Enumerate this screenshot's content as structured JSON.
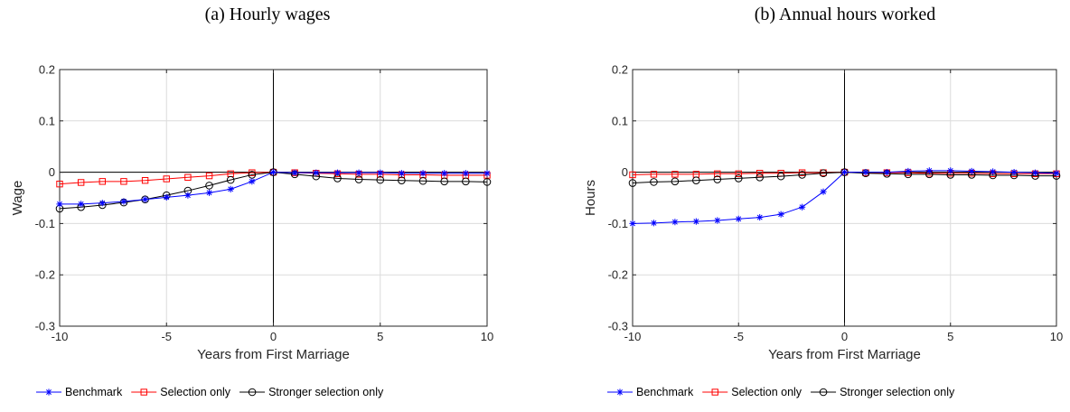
{
  "chart_data": [
    {
      "type": "line",
      "title": "(a) Hourly wages",
      "xlabel": "Years from First Marriage",
      "ylabel": "Wage",
      "xlim": [
        -10,
        10
      ],
      "ylim": [
        -0.3,
        0.2
      ],
      "xticks": [
        "-10",
        "-5",
        "0",
        "5",
        "10"
      ],
      "yticks": [
        "-0.3",
        "-0.2",
        "-0.1",
        "0",
        "0.1",
        "0.2"
      ],
      "grid": true,
      "reference_lines": {
        "horizontal_y": 0,
        "vertical_x": 0
      },
      "legend_position": "bottom",
      "x": [
        -10,
        -9,
        -8,
        -7,
        -6,
        -5,
        -4,
        -3,
        -2,
        -1,
        0,
        1,
        2,
        3,
        4,
        5,
        6,
        7,
        8,
        9,
        10
      ],
      "series": [
        {
          "name": "Benchmark",
          "color": "#0000ff",
          "marker": "star",
          "values": [
            -0.062,
            -0.062,
            -0.06,
            -0.057,
            -0.053,
            -0.049,
            -0.045,
            -0.04,
            -0.033,
            -0.018,
            0.0,
            -0.001,
            -0.001,
            -0.001,
            -0.001,
            -0.001,
            -0.002,
            -0.002,
            -0.002,
            -0.002,
            -0.002
          ]
        },
        {
          "name": "Selection only",
          "color": "#ff0000",
          "marker": "square",
          "values": [
            -0.023,
            -0.02,
            -0.018,
            -0.018,
            -0.016,
            -0.013,
            -0.01,
            -0.007,
            -0.003,
            -0.001,
            0.0,
            -0.001,
            -0.002,
            -0.003,
            -0.004,
            -0.004,
            -0.005,
            -0.005,
            -0.006,
            -0.006,
            -0.006
          ]
        },
        {
          "name": "Stronger selection only",
          "color": "#000000",
          "marker": "circle",
          "values": [
            -0.071,
            -0.068,
            -0.064,
            -0.059,
            -0.053,
            -0.045,
            -0.036,
            -0.026,
            -0.015,
            -0.005,
            0.0,
            -0.004,
            -0.008,
            -0.012,
            -0.014,
            -0.015,
            -0.016,
            -0.017,
            -0.018,
            -0.018,
            -0.019
          ]
        }
      ]
    },
    {
      "type": "line",
      "title": "(b) Annual hours worked",
      "xlabel": "Years from First Marriage",
      "ylabel": "Hours",
      "xlim": [
        -10,
        10
      ],
      "ylim": [
        -0.3,
        0.2
      ],
      "xticks": [
        "-10",
        "-5",
        "0",
        "5",
        "10"
      ],
      "yticks": [
        "-0.3",
        "-0.2",
        "-0.1",
        "0",
        "0.1",
        "0.2"
      ],
      "grid": true,
      "reference_lines": {
        "horizontal_y": 0,
        "vertical_x": 0
      },
      "legend_position": "bottom",
      "x": [
        -10,
        -9,
        -8,
        -7,
        -6,
        -5,
        -4,
        -3,
        -2,
        -1,
        0,
        1,
        2,
        3,
        4,
        5,
        6,
        7,
        8,
        9,
        10
      ],
      "series": [
        {
          "name": "Benchmark",
          "color": "#0000ff",
          "marker": "star",
          "values": [
            -0.1,
            -0.099,
            -0.097,
            -0.096,
            -0.094,
            -0.091,
            -0.088,
            -0.082,
            -0.068,
            -0.038,
            0.0,
            0.0,
            0.0,
            0.002,
            0.003,
            0.003,
            0.002,
            0.001,
            0.0,
            -0.001,
            -0.002
          ]
        },
        {
          "name": "Selection only",
          "color": "#ff0000",
          "marker": "square",
          "values": [
            -0.005,
            -0.004,
            -0.004,
            -0.004,
            -0.003,
            -0.003,
            -0.002,
            -0.002,
            -0.001,
            -0.001,
            0.0,
            -0.001,
            -0.001,
            -0.001,
            -0.002,
            -0.002,
            -0.002,
            -0.003,
            -0.003,
            -0.003,
            -0.003
          ]
        },
        {
          "name": "Stronger selection only",
          "color": "#000000",
          "marker": "circle",
          "values": [
            -0.021,
            -0.019,
            -0.018,
            -0.016,
            -0.014,
            -0.012,
            -0.01,
            -0.008,
            -0.005,
            -0.002,
            0.0,
            -0.002,
            -0.003,
            -0.004,
            -0.004,
            -0.005,
            -0.005,
            -0.006,
            -0.006,
            -0.007,
            -0.007
          ]
        }
      ]
    }
  ]
}
